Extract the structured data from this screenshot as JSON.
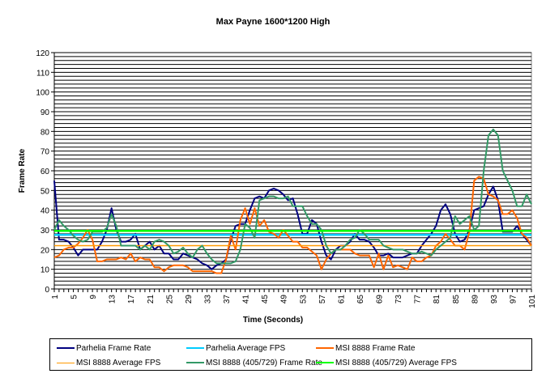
{
  "chart_data": {
    "type": "line",
    "title": "Max Payne 1600*1200 High",
    "xlabel": "Time (Seconds)",
    "ylabel": "Frame Rate",
    "ylim": [
      0,
      120
    ],
    "xlim": [
      1,
      101
    ],
    "y_ticks": [
      0,
      10,
      20,
      30,
      40,
      50,
      60,
      70,
      80,
      90,
      100,
      110,
      120
    ],
    "x_ticks": [
      1,
      5,
      9,
      13,
      17,
      21,
      25,
      29,
      33,
      37,
      41,
      45,
      49,
      53,
      57,
      61,
      65,
      69,
      73,
      77,
      81,
      85,
      89,
      93,
      97,
      101
    ],
    "grid": true,
    "legend_position": "bottom",
    "series": [
      {
        "name": "Parhelia Frame Rate",
        "color": "#000080",
        "values": [
          55,
          25,
          25,
          24,
          21,
          17,
          20,
          20,
          20,
          20,
          24,
          30,
          41,
          30,
          24,
          24,
          25,
          28,
          20,
          22,
          24,
          20,
          22,
          18,
          18,
          15,
          15,
          18,
          17,
          16,
          15,
          13,
          12,
          10,
          12,
          13,
          15,
          25,
          32,
          33,
          33,
          40,
          46,
          47,
          46,
          50,
          51,
          50,
          48,
          45,
          46,
          38,
          28,
          28,
          35,
          33,
          24,
          17,
          15,
          20,
          22,
          22,
          24,
          28,
          25,
          25,
          24,
          21,
          17,
          17,
          18,
          16,
          16,
          16,
          17,
          18,
          18,
          22,
          25,
          28,
          32,
          40,
          43,
          38,
          28,
          24,
          25,
          30,
          40,
          41,
          42,
          48,
          52,
          45,
          29,
          29,
          29,
          32,
          28,
          25,
          22
        ]
      },
      {
        "name": "Parhelia Average FPS",
        "color": "#00CCFF",
        "constant": 27.5
      },
      {
        "name": "MSI 8888 Frame Rate",
        "color": "#FF6600",
        "values": [
          16,
          17,
          20,
          21,
          21,
          23,
          26,
          30,
          25,
          14,
          14,
          15,
          15,
          15,
          16,
          15,
          18,
          14,
          16,
          15,
          15,
          11,
          11,
          9,
          11,
          12,
          12,
          12,
          11,
          9,
          9,
          9,
          9,
          9,
          8,
          8,
          15,
          27,
          20,
          35,
          41,
          33,
          41,
          32,
          35,
          29,
          28,
          26,
          30,
          27,
          24,
          24,
          21,
          21,
          19,
          17,
          10,
          15,
          18,
          20,
          20,
          20,
          20,
          18,
          17,
          17,
          17,
          11,
          18,
          10,
          17,
          11,
          12,
          11,
          10,
          16,
          14,
          14,
          16,
          17,
          22,
          24,
          28,
          25,
          22,
          22,
          20,
          29,
          55,
          57,
          56,
          48,
          47,
          45,
          38,
          38,
          40,
          36,
          28,
          26,
          22
        ]
      },
      {
        "name": "MSI 8888 Average FPS",
        "color": "#FF9900",
        "constant": 22
      },
      {
        "name": "MSI 8888 (405/729) Frame Rate",
        "color": "#339966",
        "values": [
          30,
          35,
          32,
          30,
          27,
          25,
          24,
          25,
          29,
          29,
          29,
          31,
          38,
          32,
          22,
          22,
          22,
          22,
          20,
          22,
          20,
          24,
          25,
          24,
          22,
          18,
          19,
          21,
          18,
          16,
          20,
          22,
          18,
          15,
          13,
          13,
          13,
          13,
          14,
          20,
          33,
          31,
          26,
          45,
          46,
          47,
          47,
          46,
          46,
          47,
          42,
          42,
          42,
          37,
          33,
          33,
          30,
          22,
          18,
          20,
          20,
          22,
          25,
          26,
          30,
          28,
          25,
          25,
          25,
          22,
          21,
          20,
          20,
          20,
          19,
          18,
          18,
          19,
          18,
          17,
          20,
          22,
          24,
          26,
          37,
          33,
          35,
          37,
          30,
          32,
          60,
          78,
          81,
          78,
          60,
          55,
          50,
          42,
          42,
          48,
          43
        ]
      },
      {
        "name": "MSI 8888 (405/729) Average FPS",
        "color": "#00FF00",
        "constant": 29.5
      }
    ]
  }
}
